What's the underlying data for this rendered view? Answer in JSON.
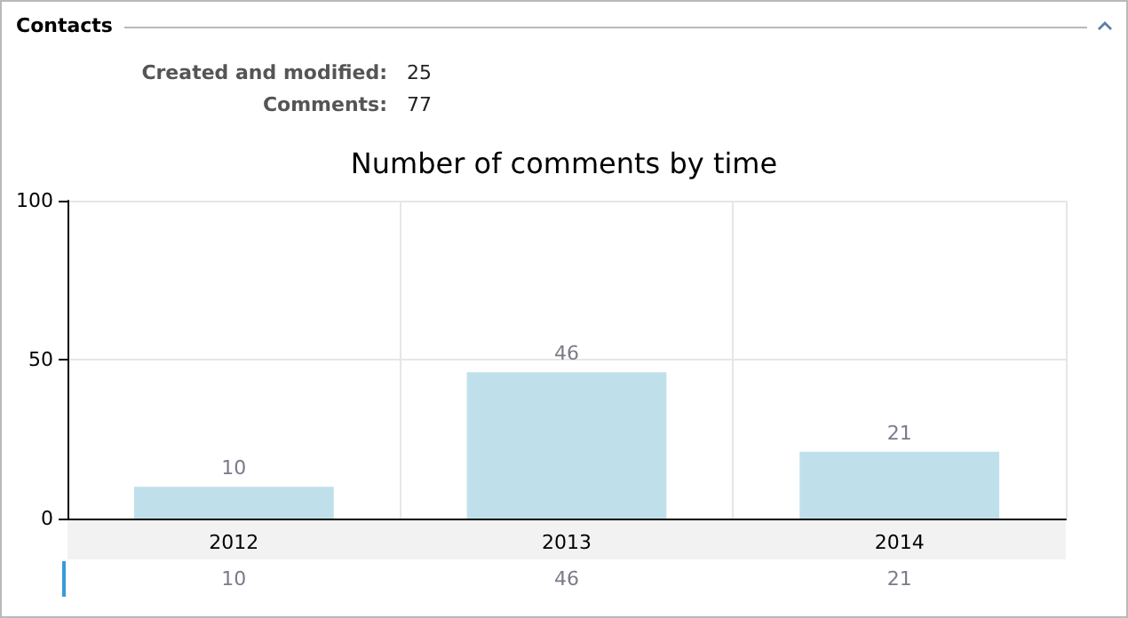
{
  "chart_data": {
    "type": "bar",
    "title": "Number of comments by time",
    "annotations": [
      "Contacts",
      "Created and modified: 25",
      "Comments: 77",
      "10",
      "46",
      "21"
    ],
    "categories": [
      "2012",
      "2013",
      "2014"
    ],
    "values": [
      10,
      46,
      21
    ],
    "color": "#bfe0eb",
    "ylim": [
      0,
      100
    ],
    "yticks": [
      0,
      50,
      100
    ],
    "grid": true,
    "data_labels": true
  }
}
